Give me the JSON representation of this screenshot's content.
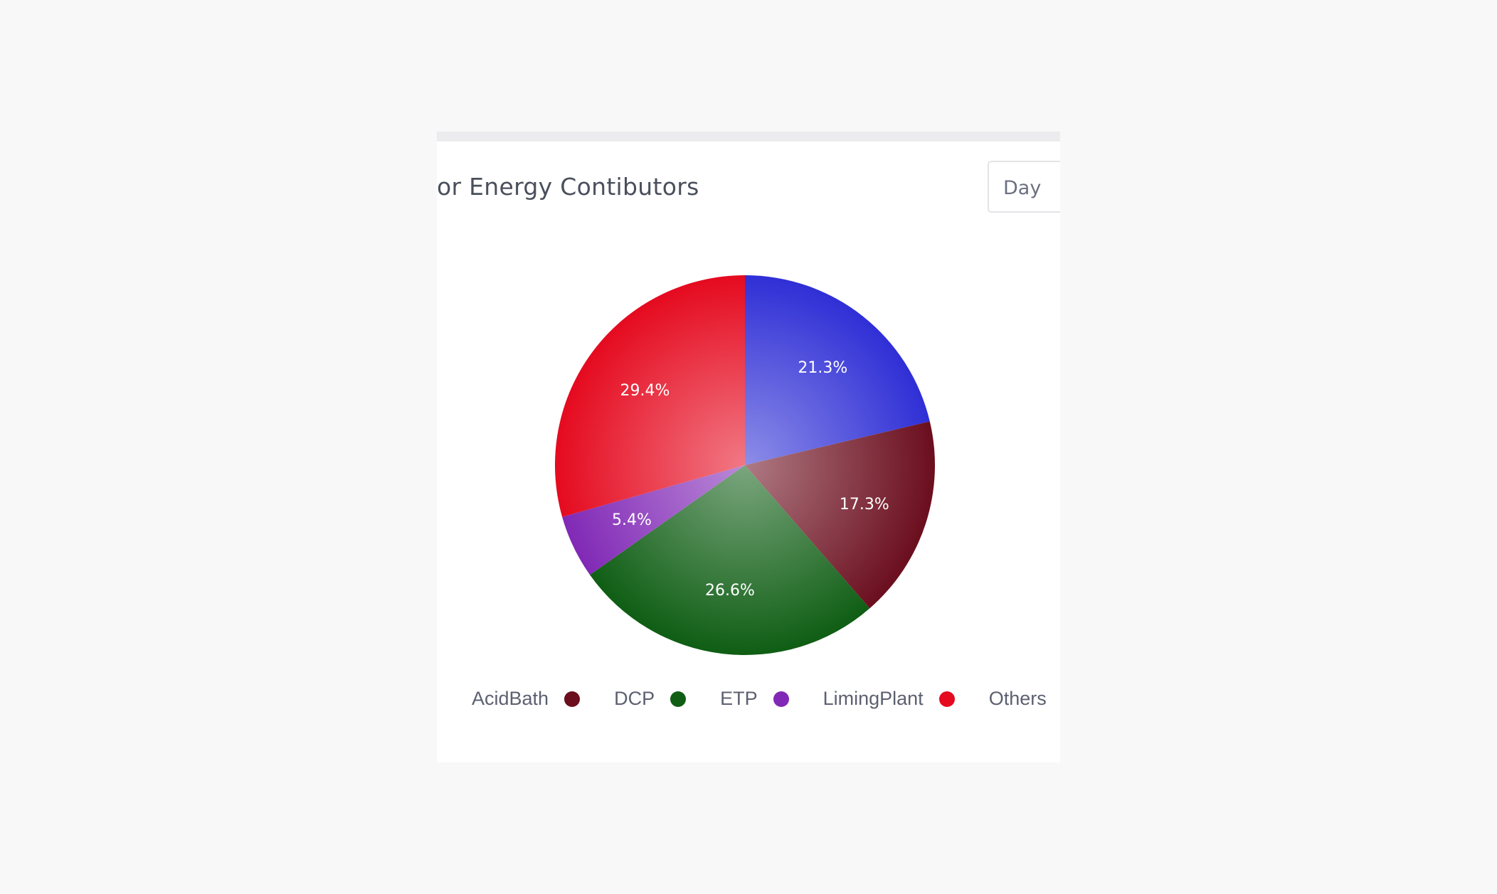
{
  "card": {
    "title": "or Energy Contibutors",
    "period": "Day"
  },
  "chart_data": {
    "type": "pie",
    "title": "or Energy Contibutors",
    "categories": [
      "AcidBath",
      "DCP",
      "ETP",
      "LimingPlant",
      "Others"
    ],
    "values": [
      17.3,
      26.6,
      5.4,
      29.4,
      21.3
    ],
    "labels": [
      "17.3%",
      "26.6%",
      "5.4%",
      "29.4%",
      "21.3%"
    ],
    "colors": [
      "#6b0e1e",
      "#0f5e14",
      "#8129b6",
      "#e50a1f",
      "#2f2fd6"
    ],
    "legend_position": "bottom"
  }
}
